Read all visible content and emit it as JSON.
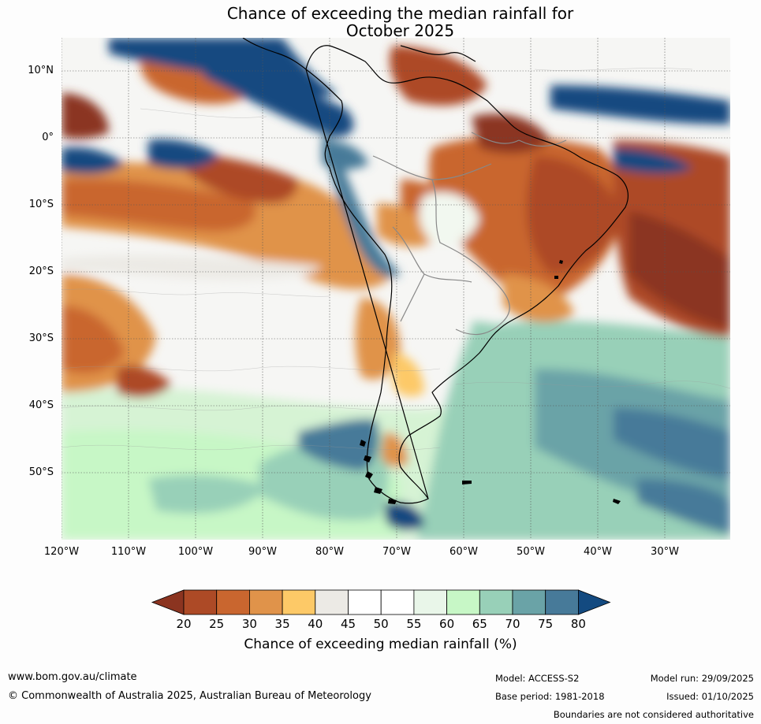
{
  "title": {
    "line1": "Chance of exceeding the median rainfall for",
    "line2": "October 2025"
  },
  "map": {
    "region": "South America and surrounding oceans",
    "lat_labels": [
      "10°N",
      "0°",
      "10°S",
      "20°S",
      "30°S",
      "40°S",
      "50°S"
    ],
    "lon_labels": [
      "120°W",
      "110°W",
      "100°W",
      "90°W",
      "80°W",
      "70°W",
      "60°W",
      "50°W",
      "40°W",
      "30°W"
    ]
  },
  "colorbar": {
    "ticks": [
      "20",
      "25",
      "30",
      "35",
      "40",
      "45",
      "50",
      "55",
      "60",
      "65",
      "70",
      "75",
      "80"
    ],
    "colors": [
      "#8b3420",
      "#ad4a26",
      "#c9662f",
      "#e0934a",
      "#fdc967",
      "#eceae5",
      "#ffffff",
      "#ffffff",
      "#e9f6e9",
      "#c7f7c6",
      "#98d0b8",
      "#6aa3a7",
      "#477a99",
      "#134a80"
    ],
    "label": "Chance of exceeding median rainfall (%)"
  },
  "footer": {
    "website": "www.bom.gov.au/climate",
    "copyright": "© Commonwealth of Australia 2025, Australian Bureau of Meteorology",
    "model": "Model: ACCESS-S2",
    "base_period": "Base period: 1981-2018",
    "model_run": "Model run: 29/09/2025",
    "issued": "Issued: 01/10/2025",
    "disclaimer": "Boundaries are not considered authoritative"
  }
}
